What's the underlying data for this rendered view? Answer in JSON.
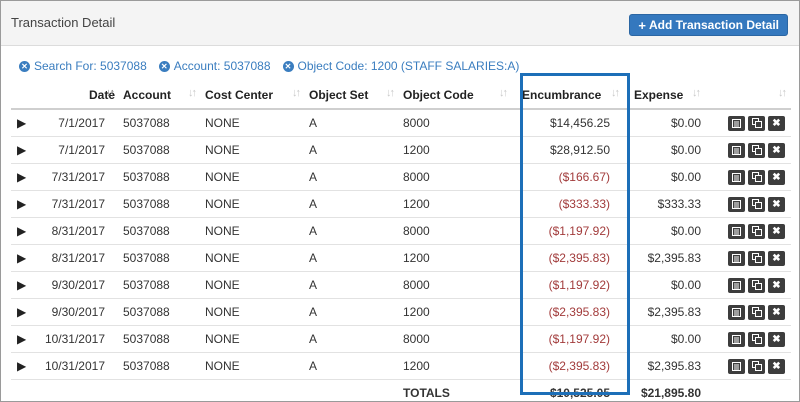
{
  "panel": {
    "title": "Transaction Detail",
    "add_button_label": "Add Transaction Detail"
  },
  "filters": [
    {
      "label": "Search For: 5037088"
    },
    {
      "label": "Account: 5037088"
    },
    {
      "label": "Object Code: 1200 (STAFF SALARIES:A)"
    }
  ],
  "columns": {
    "date": "Date",
    "account": "Account",
    "cost_center": "Cost Center",
    "object_set": "Object Set",
    "object_code": "Object Code",
    "encumbrance": "Encumbrance",
    "expense": "Expense"
  },
  "rows": [
    {
      "date": "7/1/2017",
      "account": "5037088",
      "cost_center": "NONE",
      "object_set": "A",
      "object_code": "8000",
      "encumbrance": "$14,456.25",
      "expense": "$0.00"
    },
    {
      "date": "7/1/2017",
      "account": "5037088",
      "cost_center": "NONE",
      "object_set": "A",
      "object_code": "1200",
      "encumbrance": "$28,912.50",
      "expense": "$0.00"
    },
    {
      "date": "7/31/2017",
      "account": "5037088",
      "cost_center": "NONE",
      "object_set": "A",
      "object_code": "8000",
      "encumbrance": "($166.67)",
      "expense": "$0.00"
    },
    {
      "date": "7/31/2017",
      "account": "5037088",
      "cost_center": "NONE",
      "object_set": "A",
      "object_code": "1200",
      "encumbrance": "($333.33)",
      "expense": "$333.33"
    },
    {
      "date": "8/31/2017",
      "account": "5037088",
      "cost_center": "NONE",
      "object_set": "A",
      "object_code": "8000",
      "encumbrance": "($1,197.92)",
      "expense": "$0.00"
    },
    {
      "date": "8/31/2017",
      "account": "5037088",
      "cost_center": "NONE",
      "object_set": "A",
      "object_code": "1200",
      "encumbrance": "($2,395.83)",
      "expense": "$2,395.83"
    },
    {
      "date": "9/30/2017",
      "account": "5037088",
      "cost_center": "NONE",
      "object_set": "A",
      "object_code": "8000",
      "encumbrance": "($1,197.92)",
      "expense": "$0.00"
    },
    {
      "date": "9/30/2017",
      "account": "5037088",
      "cost_center": "NONE",
      "object_set": "A",
      "object_code": "1200",
      "encumbrance": "($2,395.83)",
      "expense": "$2,395.83"
    },
    {
      "date": "10/31/2017",
      "account": "5037088",
      "cost_center": "NONE",
      "object_set": "A",
      "object_code": "8000",
      "encumbrance": "($1,197.92)",
      "expense": "$0.00"
    },
    {
      "date": "10/31/2017",
      "account": "5037088",
      "cost_center": "NONE",
      "object_set": "A",
      "object_code": "1200",
      "encumbrance": "($2,395.83)",
      "expense": "$2,395.83"
    }
  ],
  "totals": {
    "label": "TOTALS",
    "encumbrance": "$10,525.05",
    "expense": "$21,895.80"
  },
  "colors": {
    "accent": "#3478be",
    "negative": "#a23b3b",
    "highlight": "#1d6fb8"
  },
  "icons": {
    "row_actions": [
      "details-icon",
      "copy-icon",
      "delete-icon"
    ],
    "expand": "caret-right-icon"
  }
}
